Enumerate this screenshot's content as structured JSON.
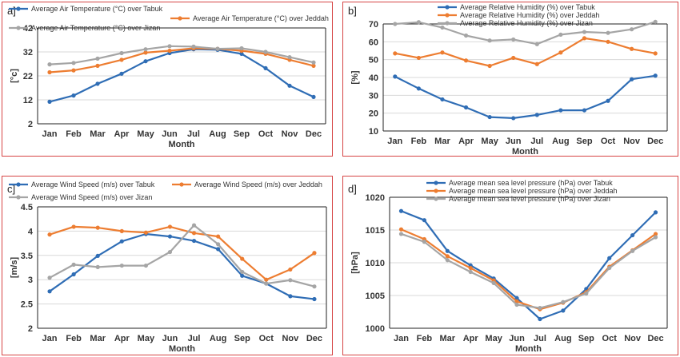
{
  "chart_data": [
    {
      "panel_label": "a]",
      "type": "line",
      "categories": [
        "Jan",
        "Feb",
        "Mar",
        "Apr",
        "May",
        "Jun",
        "Jul",
        "Aug",
        "Sep",
        "Oct",
        "Nov",
        "Dec"
      ],
      "xlabel": "Month",
      "ylabel": "[°c]",
      "ylim": [
        2,
        42
      ],
      "yticks": [
        2,
        12,
        22,
        32,
        42
      ],
      "yticklabels": [
        "2",
        "12",
        "22",
        "32",
        "42"
      ],
      "grid": true,
      "legend": "top",
      "series": [
        {
          "name": "Average Air Temperature (°C) over Tabuk",
          "color": "#2f6db5",
          "values": [
            11.2,
            13.8,
            18.7,
            22.9,
            28.1,
            31.5,
            33.1,
            32.9,
            31.2,
            25.2,
            17.9,
            13.2
          ]
        },
        {
          "name": "Average Air Temperature (°C) over Jeddah",
          "color": "#ed7d31",
          "values": [
            23.5,
            24.3,
            26.2,
            28.7,
            31.7,
            32.5,
            33.5,
            33.3,
            32.5,
            31.2,
            28.7,
            26.2
          ]
        },
        {
          "name": "Average Air Temperature (°C) over Jizan",
          "color": "#a5a5a5",
          "values": [
            26.8,
            27.4,
            29.2,
            31.5,
            33.1,
            34.4,
            34.2,
            33.3,
            33.5,
            32.0,
            29.8,
            27.6
          ]
        }
      ]
    },
    {
      "panel_label": "b]",
      "type": "line",
      "categories": [
        "Jan",
        "Feb",
        "Mar",
        "Apr",
        "May",
        "Jun",
        "Jul",
        "Aug",
        "Sep",
        "Oct",
        "Nov",
        "Dec"
      ],
      "xlabel": "Month",
      "ylabel": "[%]",
      "ylim": [
        10,
        70
      ],
      "yticks": [
        10,
        20,
        30,
        40,
        50,
        60,
        70
      ],
      "yticklabels": [
        "10",
        "20",
        "30",
        "40",
        "50",
        "60",
        "70"
      ],
      "grid": true,
      "legend": "top",
      "series": [
        {
          "name": "Average Relative Humidity (%) over Tabuk",
          "color": "#2f6db5",
          "values": [
            40.5,
            33.8,
            27.7,
            23.2,
            17.8,
            17.2,
            19.0,
            21.6,
            21.6,
            26.9,
            39.0,
            41.0
          ]
        },
        {
          "name": "Average Relative Humidity (%) over Jeddah",
          "color": "#ed7d31",
          "values": [
            53.5,
            51.0,
            54.0,
            49.5,
            46.5,
            51.0,
            47.5,
            54.0,
            62.0,
            60.0,
            56.0,
            53.5
          ]
        },
        {
          "name": "Average Relative Humidity (%) over Jizan",
          "color": "#a5a5a5",
          "values": [
            70.0,
            71.0,
            68.0,
            63.5,
            60.7,
            61.3,
            58.7,
            64.0,
            65.5,
            65.0,
            67.0,
            71.2
          ]
        }
      ]
    },
    {
      "panel_label": "c]",
      "type": "line",
      "categories": [
        "Jan",
        "Feb",
        "Mar",
        "Apr",
        "May",
        "Jun",
        "Jul",
        "Aug",
        "Sep",
        "Oct",
        "Nov",
        "Dec"
      ],
      "xlabel": "Month",
      "ylabel": "[m/s]",
      "ylim": [
        2,
        4.5
      ],
      "yticks": [
        2,
        2.5,
        3,
        3.5,
        4,
        4.5
      ],
      "yticklabels": [
        "2",
        "2.5",
        "3",
        "3.5",
        "4",
        "4.5"
      ],
      "grid": true,
      "legend": "top",
      "series": [
        {
          "name": "Average Wind Speed (m/s) over Tabuk",
          "color": "#2f6db5",
          "values": [
            2.76,
            3.11,
            3.49,
            3.79,
            3.94,
            3.89,
            3.8,
            3.63,
            3.08,
            2.92,
            2.66,
            2.6
          ]
        },
        {
          "name": "Average Wind Speed (m/s) over Jeddah",
          "color": "#ed7d31",
          "values": [
            3.93,
            4.09,
            4.07,
            4.0,
            3.97,
            4.09,
            3.96,
            3.89,
            3.43,
            3.0,
            3.21,
            3.55
          ]
        },
        {
          "name": "Average Wind Speed (m/s) over Jizan",
          "color": "#a5a5a5",
          "values": [
            3.04,
            3.31,
            3.26,
            3.29,
            3.29,
            3.57,
            4.12,
            3.73,
            3.16,
            2.92,
            2.99,
            2.86
          ]
        }
      ]
    },
    {
      "panel_label": "d]",
      "type": "line",
      "categories": [
        "Jan",
        "Feb",
        "Mar",
        "Apr",
        "May",
        "Jun",
        "Jul",
        "Aug",
        "Sep",
        "Oct",
        "Nov",
        "Dec"
      ],
      "xlabel": "Month",
      "ylabel": "[hPa]",
      "ylim": [
        1000,
        1020
      ],
      "yticks": [
        1000,
        1005,
        1010,
        1015,
        1020
      ],
      "yticklabels": [
        "1000",
        "1005",
        "1010",
        "1015",
        "1020"
      ],
      "grid": true,
      "legend": "top",
      "series": [
        {
          "name": "Average mean sea level pressure (hPa) over Tabuk",
          "color": "#2f6db5",
          "values": [
            1017.9,
            1016.5,
            1011.8,
            1009.6,
            1007.6,
            1004.6,
            1001.4,
            1002.7,
            1006.0,
            1010.7,
            1014.2,
            1017.7
          ]
        },
        {
          "name": "Average mean sea level pressure (hPa) over Jeddah",
          "color": "#ed7d31",
          "values": [
            1015.1,
            1013.6,
            1011.0,
            1009.2,
            1007.3,
            1004.1,
            1002.9,
            1003.9,
            1005.5,
            1009.4,
            1011.9,
            1014.4
          ]
        },
        {
          "name": "Average mean sea level pressure (hPa) over Jizan",
          "color": "#a5a5a5",
          "values": [
            1014.4,
            1013.2,
            1010.4,
            1008.6,
            1006.9,
            1003.6,
            1003.1,
            1004.0,
            1005.3,
            1009.2,
            1011.8,
            1013.9
          ]
        }
      ]
    }
  ]
}
